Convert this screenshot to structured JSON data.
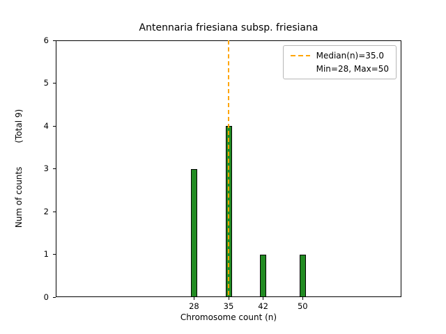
{
  "chart_data": {
    "type": "bar",
    "title": "Antennaria friesiana subsp. friesiana",
    "xlabel": "Chromosome count (n)",
    "ylabel": "Num of counts",
    "ylabel_total": "(Total 9)",
    "x": [
      28,
      35,
      42,
      50
    ],
    "values": [
      3,
      4,
      1,
      1
    ],
    "total": 9,
    "median": 35.0,
    "min": 28,
    "max": 50,
    "xlim": [
      0,
      70
    ],
    "ylim": [
      0,
      6
    ],
    "xticks": [
      28,
      35,
      42,
      50
    ],
    "yticks": [
      0,
      1,
      2,
      3,
      4,
      5,
      6
    ],
    "grid": false,
    "legend_position": "upper right",
    "legend": [
      "Median(n)=35.0",
      "Min=28, Max=50"
    ],
    "bar_color": "#228B22",
    "bar_edge_color": "#000000",
    "median_line_color": "#FFA500"
  }
}
